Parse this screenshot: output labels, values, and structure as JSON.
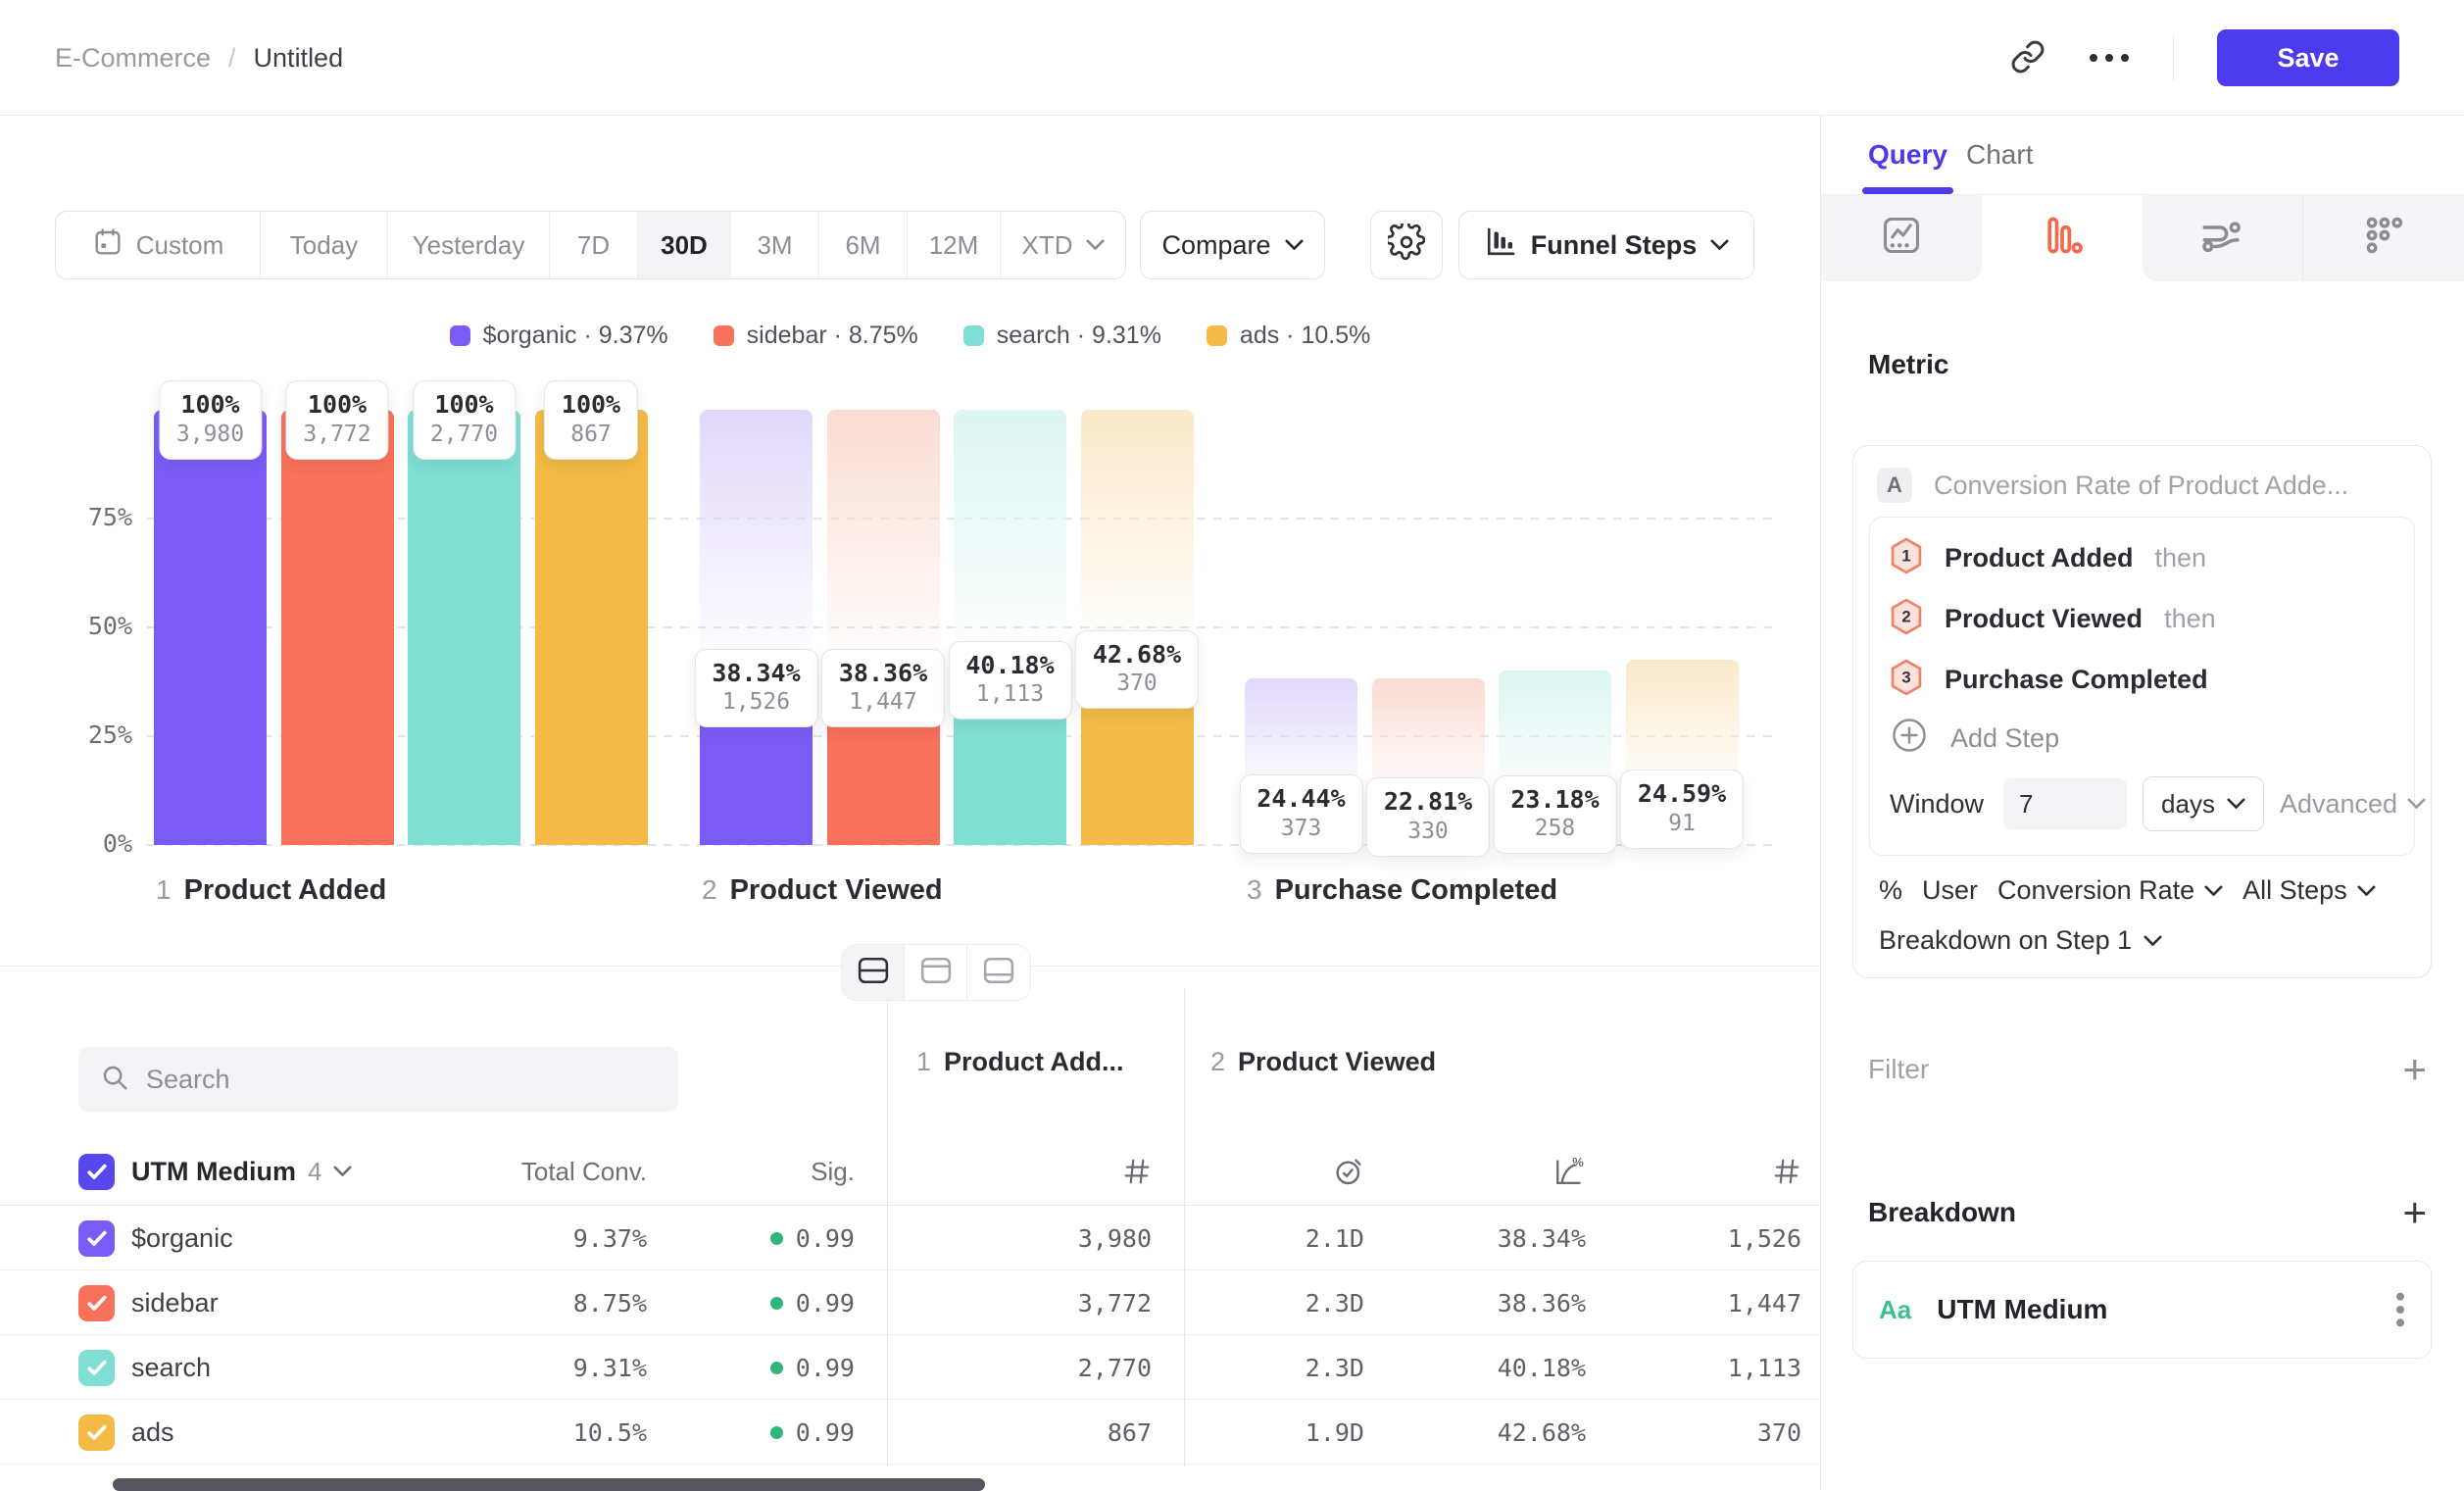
{
  "header": {
    "breadcrumb": {
      "parent": "E-Commerce",
      "separator": "/",
      "current": "Untitled"
    },
    "save_label": "Save"
  },
  "toolbar": {
    "ranges": [
      {
        "label": "Custom",
        "icon": "calendar",
        "selected": false
      },
      {
        "label": "Today",
        "selected": false
      },
      {
        "label": "Yesterday",
        "selected": false
      },
      {
        "label": "7D",
        "selected": false
      },
      {
        "label": "30D",
        "selected": true
      },
      {
        "label": "3M",
        "selected": false
      },
      {
        "label": "6M",
        "selected": false
      },
      {
        "label": "12M",
        "selected": false
      },
      {
        "label": "XTD",
        "selected": false,
        "chevron": true
      }
    ],
    "compare_label": "Compare",
    "chart_type_label": "Funnel Steps"
  },
  "chart_data": {
    "type": "bar",
    "subtype": "funnel-steps",
    "ylim": [
      0,
      100
    ],
    "grid": "dashed-horizontal",
    "yticks": [
      {
        "label": "0%",
        "value": 0
      },
      {
        "label": "25%",
        "value": 25
      },
      {
        "label": "50%",
        "value": 50
      },
      {
        "label": "75%",
        "value": 75
      }
    ],
    "steps": [
      {
        "num": "1",
        "label": "Product Added"
      },
      {
        "num": "2",
        "label": "Product Viewed"
      },
      {
        "num": "3",
        "label": "Purchase Completed"
      }
    ],
    "series": [
      {
        "name": "$organic",
        "overall_rate": "9.37%",
        "color": "#7B5BF5",
        "ghost_color": "#E1D8FB",
        "steps": [
          {
            "pct": "100%",
            "count": "3,980",
            "height": 100
          },
          {
            "pct": "38.34%",
            "count": "1,526",
            "height": 38.34
          },
          {
            "pct": "24.44%",
            "count": "373",
            "height": 9.37
          }
        ]
      },
      {
        "name": "sidebar",
        "overall_rate": "8.75%",
        "color": "#F8715A",
        "ghost_color": "#FBDCD4",
        "steps": [
          {
            "pct": "100%",
            "count": "3,772",
            "height": 100
          },
          {
            "pct": "38.36%",
            "count": "1,447",
            "height": 38.36
          },
          {
            "pct": "22.81%",
            "count": "330",
            "height": 8.75
          }
        ]
      },
      {
        "name": "search",
        "overall_rate": "9.31%",
        "color": "#7EDFD2",
        "ghost_color": "#DCF5F1",
        "steps": [
          {
            "pct": "100%",
            "count": "2,770",
            "height": 100
          },
          {
            "pct": "40.18%",
            "count": "1,113",
            "height": 40.18
          },
          {
            "pct": "23.18%",
            "count": "258",
            "height": 9.31
          }
        ]
      },
      {
        "name": "ads",
        "overall_rate": "10.5%",
        "color": "#F3BB45",
        "ghost_color": "#FAE9CA",
        "steps": [
          {
            "pct": "100%",
            "count": "867",
            "height": 100
          },
          {
            "pct": "42.68%",
            "count": "370",
            "height": 42.68
          },
          {
            "pct": "24.59%",
            "count": "91",
            "height": 10.5
          }
        ]
      }
    ]
  },
  "view_toggle": {
    "options": [
      "split-view",
      "top-panel-view",
      "bottom-panel-view"
    ],
    "selected": "split-view"
  },
  "table": {
    "search_placeholder": "Search",
    "breakdown_col": {
      "label": "UTM Medium",
      "count": "4"
    },
    "columns": {
      "total_conv": "Total Conv.",
      "sig": "Sig."
    },
    "step_columns": [
      {
        "num": "1",
        "label": "Product Add...",
        "metrics": [
          "count"
        ]
      },
      {
        "num": "2",
        "label": "Product Viewed",
        "metrics": [
          "avg-time",
          "conv-rate",
          "count"
        ]
      }
    ],
    "rows": [
      {
        "label": "$organic",
        "color": "#7B5BF5",
        "total_conv": "9.37%",
        "sig": "0.99",
        "cells": [
          "3,980",
          "2.1D",
          "38.34%",
          "1,526"
        ]
      },
      {
        "label": "sidebar",
        "color": "#F8715A",
        "total_conv": "8.75%",
        "sig": "0.99",
        "cells": [
          "3,772",
          "2.3D",
          "38.36%",
          "1,447"
        ]
      },
      {
        "label": "search",
        "color": "#7EDFD2",
        "total_conv": "9.31%",
        "sig": "0.99",
        "cells": [
          "2,770",
          "2.3D",
          "40.18%",
          "1,113"
        ]
      },
      {
        "label": "ads",
        "color": "#F3BB45",
        "total_conv": "10.5%",
        "sig": "0.99",
        "cells": [
          "867",
          "1.9D",
          "42.68%",
          "370"
        ]
      }
    ]
  },
  "query_panel": {
    "tabs": [
      {
        "label": "Query",
        "active": true
      },
      {
        "label": "Chart",
        "active": false
      }
    ],
    "chart_type_tabs": [
      "insights",
      "funnels",
      "flows",
      "retention"
    ],
    "active_chart_type": "funnels",
    "metric_section_label": "Metric",
    "metric": {
      "letter": "A",
      "title": "Conversion Rate of Product Adde..."
    },
    "steps": [
      {
        "num": "1",
        "label": "Product Added",
        "connector": "then"
      },
      {
        "num": "2",
        "label": "Product Viewed",
        "connector": "then"
      },
      {
        "num": "3",
        "label": "Purchase Completed",
        "connector": ""
      }
    ],
    "add_step_label": "Add Step",
    "window": {
      "label": "Window",
      "value": "7",
      "unit": "days",
      "advanced_label": "Advanced"
    },
    "measurement": {
      "prefix": "%",
      "entity": "User",
      "metric": "Conversion Rate",
      "scope": "All Steps"
    },
    "breakdown_on_label": "Breakdown on Step 1",
    "filter": {
      "label": "Filter"
    },
    "breakdown": {
      "label": "Breakdown",
      "item": {
        "type": "Aa",
        "label": "UTM Medium"
      }
    }
  },
  "colors": {
    "accent": "#4B3BEC",
    "funnel_tab_active": "#F4684C",
    "significance_dot": "#2fb47c",
    "breakdown_type": "#3cbf8e"
  }
}
